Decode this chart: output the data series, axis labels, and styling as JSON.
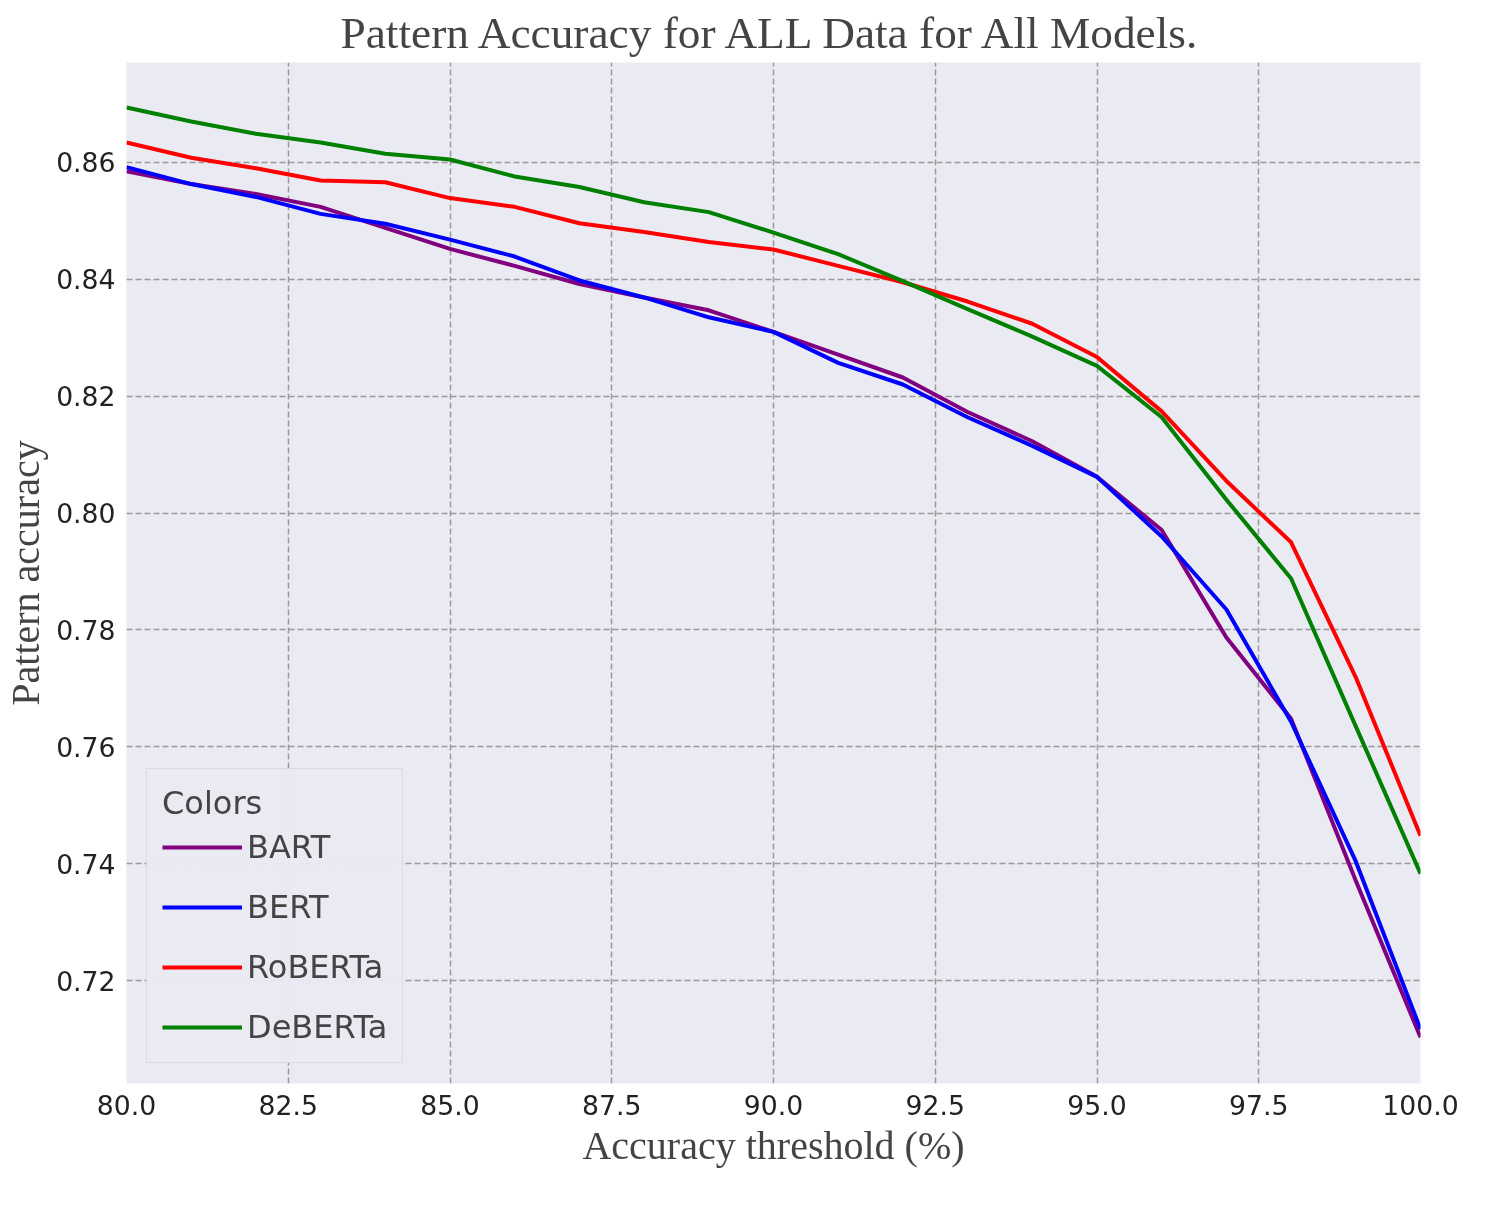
{
  "chart_data": {
    "type": "line",
    "title": "Pattern Accuracy for ALL Data for All Models.",
    "xlabel": "Accuracy threshold (%)",
    "ylabel": "Pattern accuracy",
    "legend_title": "Colors",
    "x": [
      80,
      81,
      82,
      83,
      84,
      85,
      86,
      87,
      88,
      89,
      90,
      91,
      92,
      93,
      94,
      95,
      96,
      97,
      98,
      99,
      100
    ],
    "series": [
      {
        "name": "BART",
        "color": "#800080",
        "values": [
          0.8585,
          0.8563,
          0.8546,
          0.8524,
          0.8488,
          0.8452,
          0.8423,
          0.8392,
          0.8369,
          0.8347,
          0.831,
          0.8271,
          0.8232,
          0.8173,
          0.8123,
          0.8062,
          0.7971,
          0.7787,
          0.7648,
          0.7371,
          0.7103
        ]
      },
      {
        "name": "BERT",
        "color": "#0000ff",
        "values": [
          0.8592,
          0.8563,
          0.8541,
          0.8512,
          0.8495,
          0.8468,
          0.8439,
          0.8398,
          0.8369,
          0.8335,
          0.831,
          0.8257,
          0.822,
          0.8164,
          0.8115,
          0.8062,
          0.796,
          0.7835,
          0.7643,
          0.7404,
          0.7117
        ]
      },
      {
        "name": "RoBERTa",
        "color": "#ff0000",
        "values": [
          0.8634,
          0.8608,
          0.859,
          0.8569,
          0.8566,
          0.8539,
          0.8524,
          0.8496,
          0.8481,
          0.8464,
          0.8451,
          0.8423,
          0.8395,
          0.8362,
          0.8324,
          0.8267,
          0.8174,
          0.8055,
          0.795,
          0.7719,
          0.7448
        ]
      },
      {
        "name": "DeBERTa",
        "color": "#008000",
        "values": [
          0.8694,
          0.867,
          0.8649,
          0.8634,
          0.8615,
          0.8605,
          0.8576,
          0.8558,
          0.8532,
          0.8515,
          0.848,
          0.8443,
          0.8397,
          0.8349,
          0.8302,
          0.8252,
          0.8164,
          0.8023,
          0.7888,
          0.7635,
          0.7383
        ]
      }
    ],
    "xlim": [
      80,
      100
    ],
    "ylim": [
      0.7024,
      0.8771
    ],
    "xticks": [
      {
        "value": 80,
        "label": "80.0"
      },
      {
        "value": 82.5,
        "label": "82.5"
      },
      {
        "value": 85,
        "label": "85.0"
      },
      {
        "value": 87.5,
        "label": "87.5"
      },
      {
        "value": 90,
        "label": "90.0"
      },
      {
        "value": 92.5,
        "label": "92.5"
      },
      {
        "value": 95,
        "label": "95.0"
      },
      {
        "value": 97.5,
        "label": "97.5"
      },
      {
        "value": 100,
        "label": "100.0"
      }
    ],
    "yticks": [
      {
        "value": 0.72,
        "label": "0.72"
      },
      {
        "value": 0.74,
        "label": "0.74"
      },
      {
        "value": 0.76,
        "label": "0.76"
      },
      {
        "value": 0.78,
        "label": "0.78"
      },
      {
        "value": 0.8,
        "label": "0.80"
      },
      {
        "value": 0.82,
        "label": "0.82"
      },
      {
        "value": 0.84,
        "label": "0.84"
      },
      {
        "value": 0.86,
        "label": "0.86"
      }
    ],
    "grid": true,
    "legend": "bottom left",
    "line_style": "solid"
  }
}
